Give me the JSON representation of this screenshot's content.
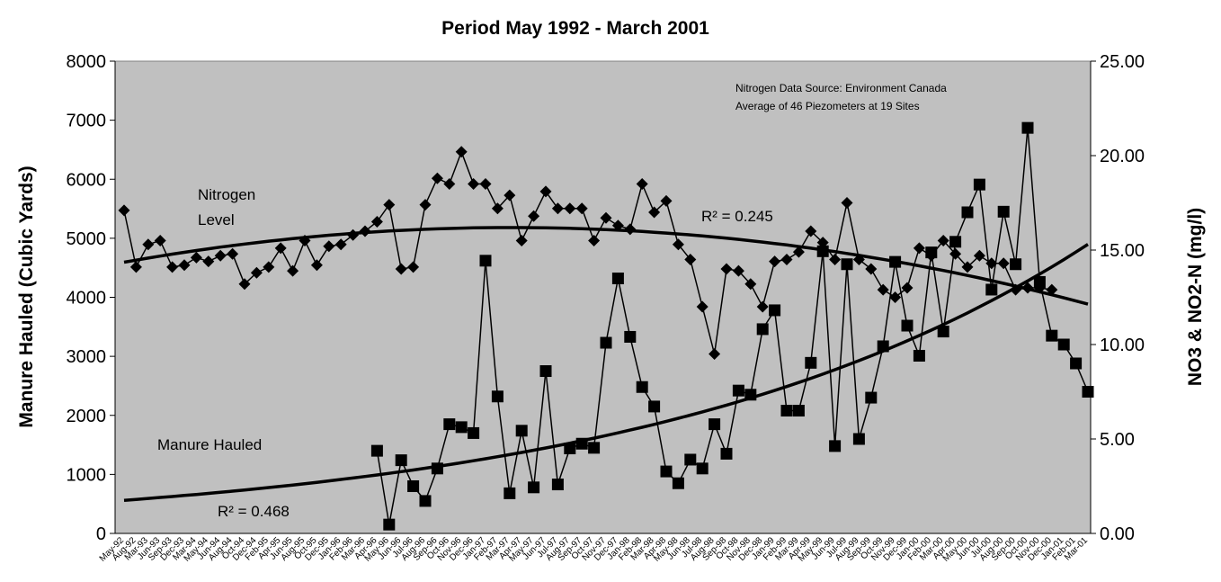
{
  "chart_data": {
    "type": "line",
    "title": "Period May 1992 - March 2001",
    "ylabel": "Manure Hauled (Cubic Yards)",
    "y2label": "NO3 & NO2-N (mg/l)",
    "annotations": [
      "Nitrogen Data Source: Environment Canada",
      "Average of 46 Piezometers at 19 Sites",
      "Nitrogen",
      "Level",
      "Manure Hauled",
      "R² = 0.245",
      "R² = 0.468"
    ],
    "categories": [
      "May-92",
      "Aug-92",
      "Mar-93",
      "Jun-93",
      "Sep-93",
      "Dec-93",
      "Mar-94",
      "May-94",
      "Jun-94",
      "Aug-94",
      "Oct-94",
      "Dec-94",
      "Feb-95",
      "Apr-95",
      "Jun-95",
      "Aug-95",
      "Oct-95",
      "Dec-95",
      "Jan-96",
      "Feb-96",
      "Mar-96",
      "Apr-96",
      "May-96",
      "Jun-96",
      "Jul-96",
      "Aug-96",
      "Sep-96",
      "Oct-96",
      "Nov-96",
      "Dec-96",
      "Jan-97",
      "Feb-97",
      "Mar-97",
      "Apr-97",
      "May-97",
      "Jun-97",
      "Jul-97",
      "Aug-97",
      "Sep-97",
      "Oct-97",
      "Nov-97",
      "Dec-97",
      "Jan-98",
      "Feb-98",
      "Mar-98",
      "Apr-98",
      "May-98",
      "Jun-98",
      "Jul-98",
      "Aug-98",
      "Sep-98",
      "Oct-98",
      "Nov-98",
      "Dec-98",
      "Jan-99",
      "Feb-99",
      "Mar-99",
      "Apr-99",
      "May-99",
      "Jun-99",
      "Jul-99",
      "Aug-99",
      "Sep-99",
      "Oct-99",
      "Nov-99",
      "Dec-99",
      "Jan-00",
      "Feb-00",
      "Mar-00",
      "Apr-00",
      "May-00",
      "Jun-00",
      "Jul-00",
      "Aug-00",
      "Sep-00",
      "Oct-00",
      "Nov-00",
      "Dec-00",
      "Jan-01",
      "Feb-01",
      "Mar-01"
    ],
    "series": [
      {
        "name": "Nitrogen Level",
        "color": "#000000",
        "axis": "y2",
        "marker": "diamond",
        "trendline": "poly2",
        "values": [
          17.1,
          14.1,
          15.3,
          15.5,
          14.1,
          14.2,
          14.6,
          14.4,
          14.7,
          14.8,
          13.2,
          13.8,
          14.1,
          15.1,
          13.9,
          15.5,
          14.2,
          15.2,
          15.3,
          15.8,
          16.0,
          16.5,
          17.4,
          14.0,
          14.1,
          17.4,
          18.8,
          18.5,
          20.2,
          18.5,
          18.5,
          17.2,
          17.9,
          15.5,
          16.8,
          18.1,
          17.2,
          17.2,
          17.2,
          15.5,
          16.7,
          16.3,
          16.1,
          18.5,
          17.0,
          17.6,
          15.3,
          14.5,
          12.0,
          9.5,
          14.0,
          13.9,
          13.2,
          12.0,
          14.4,
          14.5,
          14.9,
          16.0,
          15.4,
          14.5,
          17.5,
          14.5,
          14.0,
          12.9,
          12.5,
          13.0,
          15.1,
          14.7,
          15.5,
          14.8,
          14.1,
          14.7,
          14.3,
          14.3,
          12.9,
          13.0,
          13.0,
          12.9,
          null,
          null,
          null
        ]
      },
      {
        "name": "Manure Hauled",
        "color": "#000000",
        "axis": "y",
        "marker": "square",
        "trendline": "exponential",
        "values": [
          null,
          null,
          null,
          null,
          null,
          null,
          null,
          null,
          null,
          null,
          null,
          null,
          null,
          null,
          null,
          null,
          null,
          null,
          null,
          null,
          null,
          1400,
          150,
          1240,
          800,
          550,
          1100,
          1850,
          1800,
          1700,
          4620,
          2320,
          680,
          1740,
          780,
          2750,
          830,
          1440,
          1520,
          1450,
          3230,
          4320,
          3330,
          2480,
          2150,
          1050,
          850,
          1250,
          1100,
          1850,
          1350,
          2420,
          2350,
          3460,
          3780,
          2080,
          2080,
          2890,
          4780,
          1480,
          4560,
          1600,
          2300,
          3170,
          4600,
          3520,
          3010,
          4760,
          3420,
          4940,
          5440,
          5910,
          4130,
          5450,
          4560,
          6870,
          4260,
          3350,
          3200,
          2880,
          2400
        ]
      }
    ],
    "ylim": [
      0,
      8000
    ],
    "yticks": [
      0,
      1000,
      2000,
      3000,
      4000,
      5000,
      6000,
      7000,
      8000
    ],
    "y2lim": [
      0,
      25
    ],
    "y2ticks": [
      {
        "value": 0,
        "label": "0.00"
      },
      {
        "value": 5,
        "label": "5.00"
      },
      {
        "value": 10,
        "label": "10.00"
      },
      {
        "value": 15,
        "label": "15.00"
      },
      {
        "value": 20,
        "label": "20.00"
      },
      {
        "value": 25,
        "label": "25.00"
      }
    ],
    "plot_background": "#c0c0c0"
  }
}
